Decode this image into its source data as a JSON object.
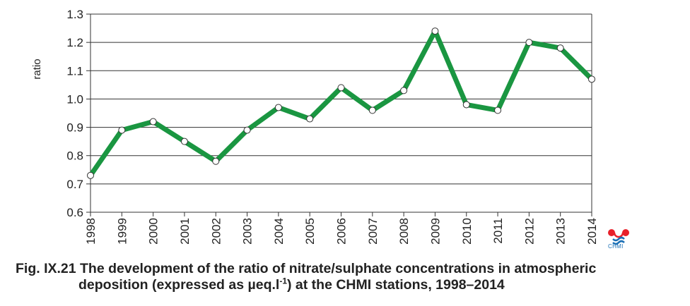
{
  "chart_data": {
    "type": "line",
    "title": "",
    "xlabel": "",
    "ylabel": "ratio",
    "ylim": [
      0.6,
      1.3
    ],
    "yticks": [
      "0.6",
      "0.7",
      "0.8",
      "0.9",
      "1.0",
      "1.1",
      "1.2",
      "1.3"
    ],
    "categories": [
      "1998",
      "1999",
      "2000",
      "2001",
      "2002",
      "2003",
      "2004",
      "2005",
      "2006",
      "2007",
      "2008",
      "2009",
      "2010",
      "2011",
      "2012",
      "2013",
      "2014"
    ],
    "series": [
      {
        "values": [
          0.73,
          0.89,
          0.92,
          0.85,
          0.78,
          0.89,
          0.97,
          0.93,
          1.04,
          0.96,
          1.03,
          1.24,
          0.98,
          0.96,
          1.2,
          1.18,
          1.07
        ],
        "color": "#1a9641"
      }
    ],
    "grid": true,
    "legend": "none"
  },
  "caption": {
    "line1_prefix": "Fig. IX.21  The development of the ratio of nitrate/sulphate concentrations in atmospheric",
    "line2_prefix": "deposition (expressed as µeq.l",
    "line2_sup": "-1",
    "line2_suffix": ") at the CHMI stations, 1998–2014"
  },
  "logo": {
    "text": "CHMI",
    "icon": "chmi-logo-icon",
    "red": "#e8202a",
    "blue": "#1a6fb5"
  }
}
